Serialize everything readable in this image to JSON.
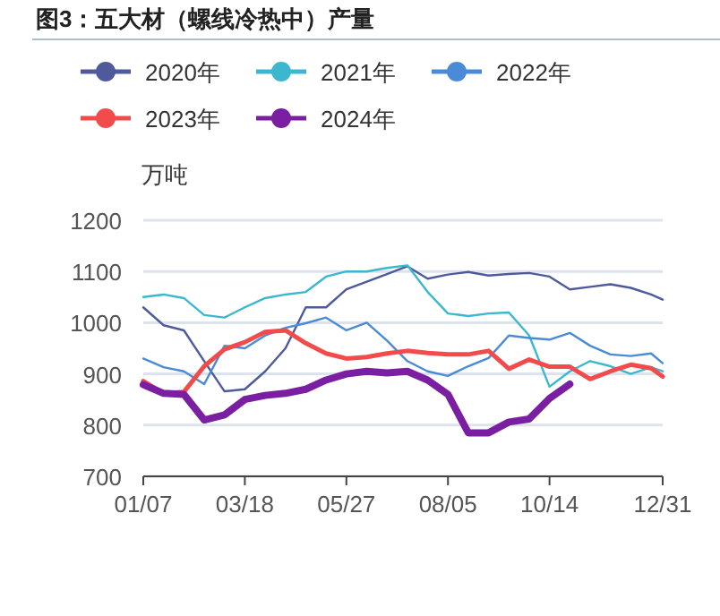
{
  "chart_data": {
    "type": "line",
    "title": "图3：五大材（螺线冷热中）产量",
    "ylabel": "万吨",
    "x": [
      "--01-07",
      "--01-21",
      "--02-04",
      "--02-18",
      "--03-04",
      "--03-18",
      "--04-01",
      "--04-15",
      "--04-29",
      "--05-13",
      "--05-27",
      "--06-10",
      "--06-24",
      "--07-08",
      "--07-22",
      "--08-05",
      "--08-19",
      "--09-02",
      "--09-16",
      "--09-30",
      "--10-14",
      "--10-28",
      "--11-11",
      "--11-25",
      "--12-09",
      "--12-23",
      "--12-31"
    ],
    "series": [
      {
        "name": "2020年",
        "color": "#4e5a9c",
        "values": [
          1030,
          995,
          985,
          925,
          866,
          870,
          905,
          950,
          1030,
          1030,
          1065,
          1080,
          1095,
          1110,
          1086,
          1094,
          1099,
          1092,
          1095,
          1097,
          1090,
          1065,
          1070,
          1075,
          1068,
          1055,
          1045
        ]
      },
      {
        "name": "2021年",
        "color": "#3bb8d0",
        "values": [
          1050,
          1055,
          1048,
          1015,
          1010,
          1030,
          1048,
          1055,
          1060,
          1090,
          1100,
          1100,
          1107,
          1112,
          1060,
          1018,
          1013,
          1018,
          1020,
          975,
          875,
          905,
          925,
          915,
          900,
          913,
          905
        ]
      },
      {
        "name": "2022年",
        "color": "#4a8ad6",
        "values": [
          930,
          913,
          905,
          880,
          955,
          950,
          975,
          990,
          999,
          1010,
          985,
          1000,
          965,
          925,
          905,
          896,
          915,
          931,
          975,
          970,
          967,
          980,
          955,
          938,
          935,
          940,
          921
        ]
      },
      {
        "name": "2023年",
        "color": "#f24b4b",
        "values": [
          886,
          862,
          865,
          915,
          948,
          962,
          982,
          985,
          960,
          940,
          930,
          933,
          940,
          945,
          941,
          938,
          938,
          945,
          910,
          928,
          914,
          914,
          890,
          905,
          918,
          911,
          895
        ]
      },
      {
        "name": "2024年",
        "color": "#7b1fa2",
        "values": [
          879,
          862,
          860,
          810,
          820,
          850,
          858,
          862,
          870,
          888,
          900,
          905,
          902,
          905,
          888,
          860,
          785,
          785,
          806,
          812,
          852,
          880,
          null,
          null,
          null,
          null,
          null
        ]
      }
    ],
    "xlim": [
      "--01-07",
      "--12-31"
    ],
    "xticks": [
      {
        "value": "--01-07",
        "label": "01/07"
      },
      {
        "value": "--03-18",
        "label": "03/18"
      },
      {
        "value": "--05-27",
        "label": "05/27"
      },
      {
        "value": "--08-05",
        "label": "08/05"
      },
      {
        "value": "--10-14",
        "label": "10/14"
      },
      {
        "value": "--12-31",
        "label": "12/31"
      }
    ],
    "ylim": [
      700,
      1200
    ],
    "yticks": [
      700,
      800,
      900,
      1000,
      1100,
      1200
    ],
    "grid": "y",
    "legend": "top",
    "marker": "none",
    "line_style": "solid"
  }
}
